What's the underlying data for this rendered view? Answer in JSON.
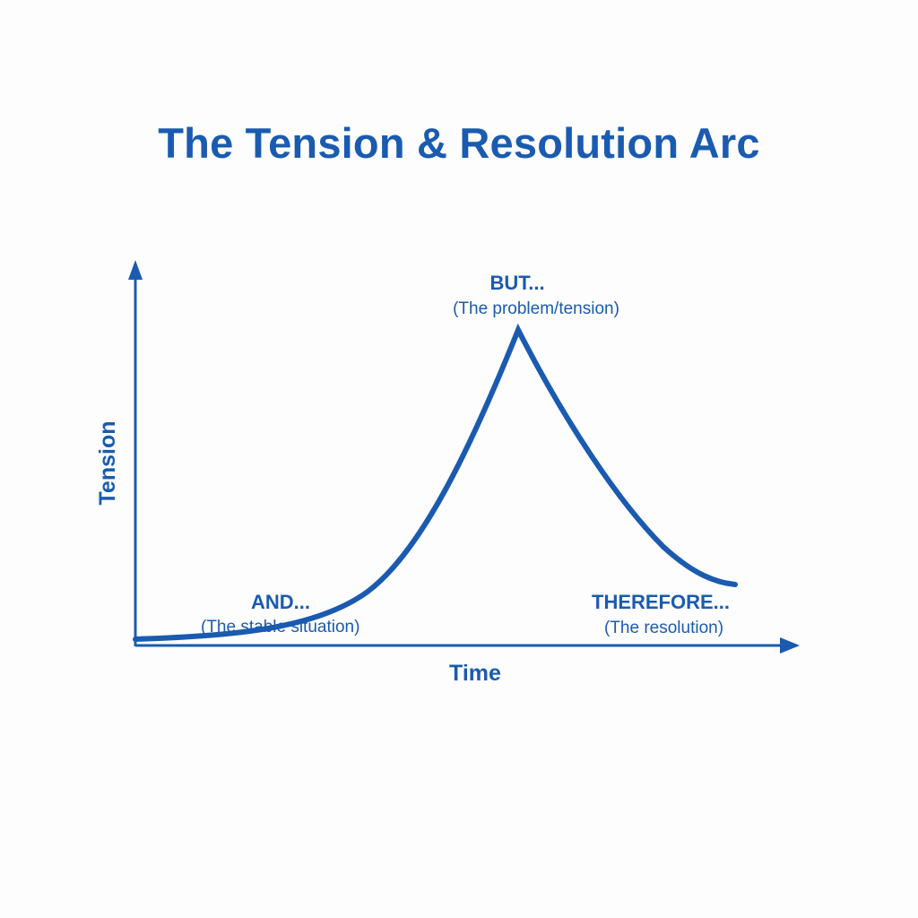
{
  "title": "The Tension & Resolution Arc",
  "axes": {
    "y_label": "Tension",
    "x_label": "Time"
  },
  "stages": [
    {
      "id": "and",
      "heading": "AND...",
      "caption": "(The stable situation)"
    },
    {
      "id": "but",
      "heading": "BUT...",
      "caption": "(The problem/tension)"
    },
    {
      "id": "therefore",
      "heading": "THEREFORE...",
      "caption": "(The resolution)"
    }
  ],
  "colors": {
    "primary": "#1a5bb0",
    "background": "#fdfdfd"
  }
}
